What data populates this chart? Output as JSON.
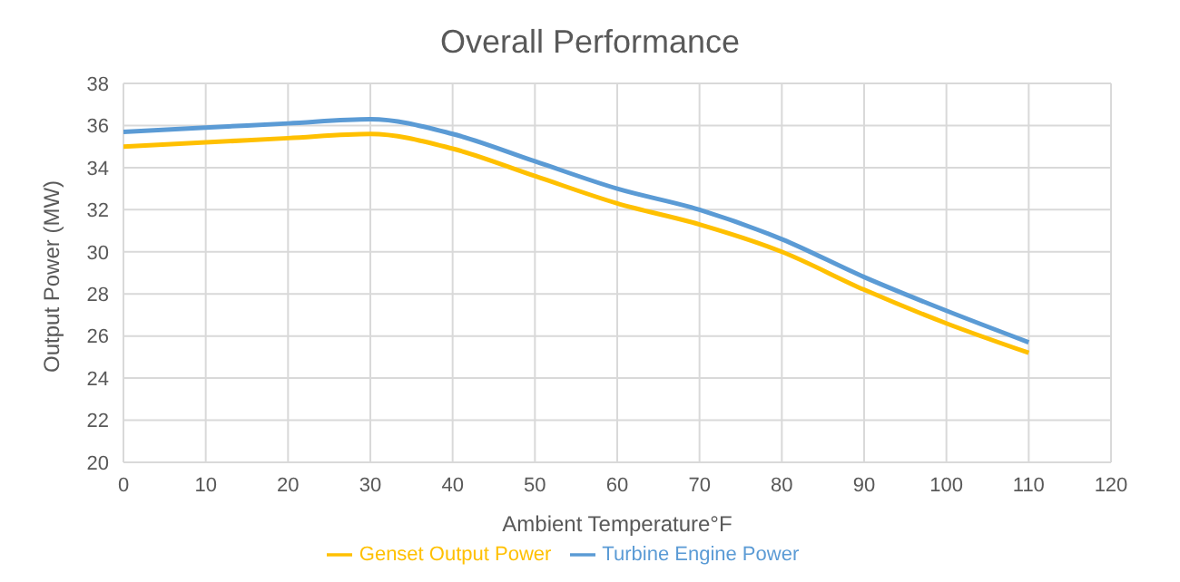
{
  "chart_data": {
    "type": "line",
    "title": "Overall Performance",
    "xlabel": "Ambient Temperature°F",
    "ylabel": "Output Power (MW)",
    "x": [
      0,
      10,
      20,
      30,
      40,
      50,
      60,
      70,
      80,
      90,
      100,
      110
    ],
    "series": [
      {
        "name": "Turbine Engine Power",
        "color": "#5b9bd5",
        "values": [
          35.7,
          35.9,
          36.1,
          36.3,
          35.6,
          34.3,
          33.0,
          32.0,
          30.6,
          28.8,
          27.2,
          25.7
        ]
      },
      {
        "name": "Genset Output Power",
        "color": "#ffc000",
        "values": [
          35.0,
          35.2,
          35.4,
          35.6,
          34.9,
          33.6,
          32.3,
          31.3,
          30.0,
          28.2,
          26.6,
          25.2
        ]
      }
    ],
    "xlim": [
      0,
      120
    ],
    "xticks": [
      0,
      10,
      20,
      30,
      40,
      50,
      60,
      70,
      80,
      90,
      100,
      110,
      120
    ],
    "ylim": [
      20,
      38
    ],
    "yticks": [
      20,
      22,
      24,
      26,
      28,
      30,
      32,
      34,
      36,
      38
    ],
    "grid": true,
    "legend": "bottom",
    "marker": "none",
    "line_style": "solid"
  }
}
